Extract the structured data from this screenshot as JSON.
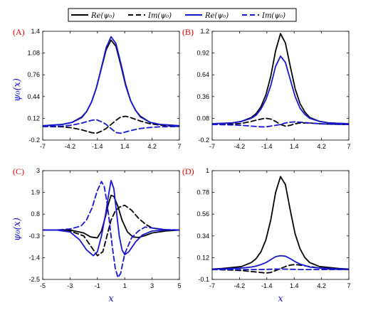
{
  "legend": [
    {
      "label": "Re(ψ₀)",
      "color": "#000000",
      "dash": "solid"
    },
    {
      "label": "Im(ψ₀)",
      "color": "#000000",
      "dash": "dashed"
    },
    {
      "label": "Re(ψ₀)",
      "color": "#1515d6",
      "dash": "solid"
    },
    {
      "label": "Im(ψ₀)",
      "color": "#1515d6",
      "dash": "dashed"
    }
  ],
  "colors": {
    "black": "#000000",
    "blue": "#1515d6",
    "tag": "#e00000"
  },
  "chart_data": [
    {
      "type": "line",
      "tag": "(A)",
      "ylabel": "ψ₀(x)",
      "xlabel": "",
      "xlim": [
        -7,
        7
      ],
      "ylim": [
        -0.2,
        1.4
      ],
      "xticks": [
        "-7",
        "-4.2",
        "-1.4",
        "1.4",
        "4.2",
        "7"
      ],
      "yticks": [
        "-0.2",
        "0.12",
        "0.44",
        "0.76",
        "1.08",
        "1.4"
      ],
      "series": [
        {
          "color": "#000000",
          "dash": "solid",
          "x": [
            -7,
            -6,
            -5,
            -4,
            -3,
            -2.5,
            -2,
            -1.5,
            -1,
            -0.5,
            0,
            0.5,
            1,
            1.5,
            2,
            2.5,
            3,
            4,
            5,
            6,
            7
          ],
          "y": [
            0.01,
            0.02,
            0.03,
            0.06,
            0.14,
            0.22,
            0.36,
            0.57,
            0.85,
            1.13,
            1.27,
            1.18,
            0.9,
            0.6,
            0.38,
            0.24,
            0.15,
            0.06,
            0.03,
            0.02,
            0.01
          ]
        },
        {
          "color": "#000000",
          "dash": "dashed",
          "x": [
            -7,
            -5,
            -4,
            -3,
            -2,
            -1.5,
            -1,
            -0.5,
            0,
            0.5,
            1,
            1.5,
            2,
            3,
            4,
            5,
            7
          ],
          "y": [
            0,
            -0.005,
            -0.02,
            -0.05,
            -0.09,
            -0.1,
            -0.07,
            -0.03,
            0.03,
            0.09,
            0.14,
            0.15,
            0.13,
            0.08,
            0.04,
            0.02,
            0
          ]
        },
        {
          "color": "#1515d6",
          "dash": "solid",
          "x": [
            -7,
            -6,
            -5,
            -4,
            -3,
            -2.5,
            -2,
            -1.5,
            -1,
            -0.5,
            0,
            0.5,
            1,
            1.5,
            2,
            2.5,
            3,
            4,
            5,
            6,
            7
          ],
          "y": [
            0.01,
            0.02,
            0.03,
            0.06,
            0.13,
            0.22,
            0.36,
            0.57,
            0.86,
            1.16,
            1.32,
            1.22,
            0.93,
            0.62,
            0.38,
            0.24,
            0.14,
            0.06,
            0.03,
            0.02,
            0.01
          ]
        },
        {
          "color": "#1515d6",
          "dash": "dashed",
          "x": [
            -7,
            -5,
            -4,
            -3,
            -2,
            -1.5,
            -1,
            -0.5,
            0,
            0.5,
            1,
            1.5,
            2,
            3,
            4,
            5,
            7
          ],
          "y": [
            0,
            0.005,
            0.02,
            0.05,
            0.09,
            0.1,
            0.07,
            0.03,
            -0.03,
            -0.09,
            -0.1,
            -0.08,
            -0.06,
            -0.03,
            -0.015,
            -0.005,
            0
          ]
        }
      ]
    },
    {
      "type": "line",
      "tag": "(B)",
      "ylabel": "",
      "xlabel": "",
      "xlim": [
        -7,
        7
      ],
      "ylim": [
        -0.2,
        1.2
      ],
      "xticks": [
        "-7",
        "-4.2",
        "-1.4",
        "1.4",
        "4.2",
        "7"
      ],
      "yticks": [
        "-0.2",
        "0.08",
        "0.36",
        "0.64",
        "0.92",
        "1.2"
      ],
      "series": [
        {
          "color": "#000000",
          "dash": "solid",
          "x": [
            -7,
            -6,
            -5,
            -4,
            -3,
            -2.5,
            -2,
            -1.5,
            -1,
            -0.5,
            0,
            0.5,
            1,
            1.5,
            2,
            2.5,
            3,
            4,
            5,
            6,
            7
          ],
          "y": [
            0.01,
            0.015,
            0.02,
            0.04,
            0.09,
            0.14,
            0.23,
            0.38,
            0.62,
            0.95,
            1.17,
            1.05,
            0.75,
            0.46,
            0.27,
            0.16,
            0.09,
            0.04,
            0.02,
            0.015,
            0.01
          ]
        },
        {
          "color": "#000000",
          "dash": "dashed",
          "x": [
            -7,
            -5,
            -4,
            -3,
            -2,
            -1.5,
            -1,
            -0.5,
            0,
            0.5,
            1,
            1.5,
            2,
            3,
            4,
            5,
            7
          ],
          "y": [
            0,
            0.005,
            0.015,
            0.04,
            0.07,
            0.08,
            0.07,
            0.04,
            0,
            -0.02,
            -0.01,
            0.01,
            0.02,
            0.02,
            0.01,
            0.005,
            0
          ]
        },
        {
          "color": "#1515d6",
          "dash": "solid",
          "x": [
            -7,
            -6,
            -5,
            -4,
            -3,
            -2.5,
            -2,
            -1.5,
            -1,
            -0.5,
            0,
            0.5,
            1,
            1.5,
            2,
            2.5,
            3,
            4,
            5,
            6,
            7
          ],
          "y": [
            0.01,
            0.015,
            0.02,
            0.04,
            0.08,
            0.12,
            0.2,
            0.32,
            0.5,
            0.75,
            0.88,
            0.8,
            0.58,
            0.36,
            0.21,
            0.13,
            0.08,
            0.04,
            0.02,
            0.015,
            0.01
          ]
        },
        {
          "color": "#1515d6",
          "dash": "dashed",
          "x": [
            -7,
            -5,
            -4,
            -3,
            -2,
            -1.5,
            -1,
            -0.5,
            0,
            0.5,
            1,
            1.5,
            2,
            3,
            4,
            5,
            7
          ],
          "y": [
            0,
            -0.005,
            -0.01,
            -0.02,
            -0.03,
            -0.03,
            -0.02,
            -0.01,
            0,
            0.02,
            0.03,
            0.035,
            0.03,
            0.02,
            0.01,
            0.005,
            0
          ]
        }
      ]
    },
    {
      "type": "line",
      "tag": "(C)",
      "ylabel": "ψ₀(x)",
      "xlabel": "x",
      "xlim": [
        -5,
        5
      ],
      "ylim": [
        -2.5,
        3
      ],
      "xticks": [
        "-5",
        "-3",
        "-1",
        "1",
        "3",
        "5"
      ],
      "yticks": [
        "-2.5",
        "-1.4",
        "-0.3",
        "0.8",
        "1.9",
        "3"
      ],
      "series": [
        {
          "color": "#000000",
          "dash": "solid",
          "x": [
            -5,
            -4,
            -3,
            -2,
            -1.5,
            -1,
            -0.7,
            -0.4,
            -0.2,
            0,
            0.2,
            0.5,
            0.8,
            1.2,
            1.6,
            2,
            2.5,
            3,
            4,
            5
          ],
          "y": [
            0,
            0,
            0,
            -0.15,
            -0.35,
            -0.4,
            -0.05,
            0.7,
            1.3,
            1.75,
            1.7,
            1.2,
            0.5,
            -0.1,
            -0.35,
            -0.38,
            -0.28,
            -0.15,
            -0.05,
            0
          ]
        },
        {
          "color": "#000000",
          "dash": "dashed",
          "x": [
            -5,
            -4,
            -3,
            -2,
            -1.5,
            -1,
            -0.6,
            -0.3,
            0,
            0.3,
            0.6,
            1,
            1.5,
            2,
            2.5,
            3,
            4,
            5
          ],
          "y": [
            0,
            0,
            -0.05,
            -0.3,
            -0.8,
            -1.3,
            -1.1,
            -0.3,
            0.5,
            0.95,
            1.15,
            1.25,
            1.0,
            0.6,
            0.3,
            0.1,
            0,
            0
          ]
        },
        {
          "color": "#1515d6",
          "dash": "solid",
          "x": [
            -5,
            -4,
            -3,
            -2.3,
            -1.8,
            -1.3,
            -1,
            -0.7,
            -0.4,
            -0.2,
            0,
            0.2,
            0.4,
            0.6,
            0.8,
            1,
            1.3,
            1.8,
            2.3,
            3,
            4,
            5
          ],
          "y": [
            0,
            0,
            -0.1,
            -0.5,
            -1.0,
            -1.3,
            -1.1,
            -0.3,
            0.8,
            1.7,
            2.5,
            2.1,
            0.9,
            -0.3,
            -1.0,
            -1.25,
            -1.1,
            -0.6,
            -0.25,
            -0.05,
            0,
            0
          ]
        },
        {
          "color": "#1515d6",
          "dash": "dashed",
          "x": [
            -5,
            -4,
            -3,
            -2.2,
            -1.8,
            -1.4,
            -1,
            -0.7,
            -0.5,
            -0.3,
            -0.1,
            0.1,
            0.3,
            0.5,
            0.7,
            1,
            1.5,
            2,
            2.5,
            3,
            4,
            5
          ],
          "y": [
            0,
            0,
            0.05,
            0.2,
            0.5,
            1.1,
            2.0,
            2.45,
            2.2,
            1.4,
            0.3,
            -0.9,
            -1.9,
            -2.4,
            -2.2,
            -1.2,
            -0.4,
            -0.05,
            0.15,
            0.1,
            0.02,
            0
          ]
        }
      ]
    },
    {
      "type": "line",
      "tag": "(D)",
      "ylabel": "",
      "xlabel": "x",
      "xlim": [
        -7,
        7
      ],
      "ylim": [
        -0.1,
        1
      ],
      "xticks": [
        "-7",
        "-4.2",
        "-1.4",
        "1.4",
        "4.2",
        "7"
      ],
      "yticks": [
        "-0.1",
        "0.12",
        "0.34",
        "0.56",
        "0.78",
        "1"
      ],
      "series": [
        {
          "color": "#000000",
          "dash": "solid",
          "x": [
            -7,
            -6,
            -5,
            -4,
            -3,
            -2.5,
            -2,
            -1.5,
            -1,
            -0.5,
            0,
            0.5,
            1,
            1.5,
            2,
            2.5,
            3,
            4,
            5,
            6,
            7
          ],
          "y": [
            0.005,
            0.01,
            0.02,
            0.03,
            0.07,
            0.11,
            0.18,
            0.3,
            0.5,
            0.78,
            0.94,
            0.86,
            0.6,
            0.36,
            0.21,
            0.12,
            0.07,
            0.03,
            0.02,
            0.01,
            0.005
          ]
        },
        {
          "color": "#000000",
          "dash": "dashed",
          "x": [
            -7,
            -5,
            -4,
            -3,
            -2,
            -1.5,
            -1,
            -0.5,
            0,
            0.5,
            1,
            1.5,
            2,
            3,
            4,
            5,
            7
          ],
          "y": [
            0,
            -0.005,
            -0.01,
            -0.02,
            -0.03,
            -0.035,
            -0.03,
            -0.01,
            0.01,
            0.03,
            0.045,
            0.05,
            0.045,
            0.03,
            0.015,
            0.005,
            0
          ]
        },
        {
          "color": "#1515d6",
          "dash": "solid",
          "x": [
            -7,
            -6,
            -5,
            -4,
            -3,
            -2.5,
            -2,
            -1.5,
            -1,
            -0.5,
            0,
            0.5,
            1,
            1.5,
            2,
            2.5,
            3,
            4,
            5,
            6,
            7
          ],
          "y": [
            0.005,
            0.005,
            0.01,
            0.015,
            0.025,
            0.035,
            0.05,
            0.07,
            0.1,
            0.13,
            0.14,
            0.135,
            0.11,
            0.08,
            0.055,
            0.04,
            0.025,
            0.015,
            0.01,
            0.005,
            0.005
          ]
        },
        {
          "color": "#1515d6",
          "dash": "dashed",
          "x": [
            -7,
            -5,
            -3,
            -2,
            -1,
            0,
            1,
            2,
            3,
            5,
            7
          ],
          "y": [
            0,
            0,
            0,
            0,
            0.003,
            0.005,
            0.003,
            0,
            0,
            0,
            0
          ]
        }
      ]
    }
  ]
}
